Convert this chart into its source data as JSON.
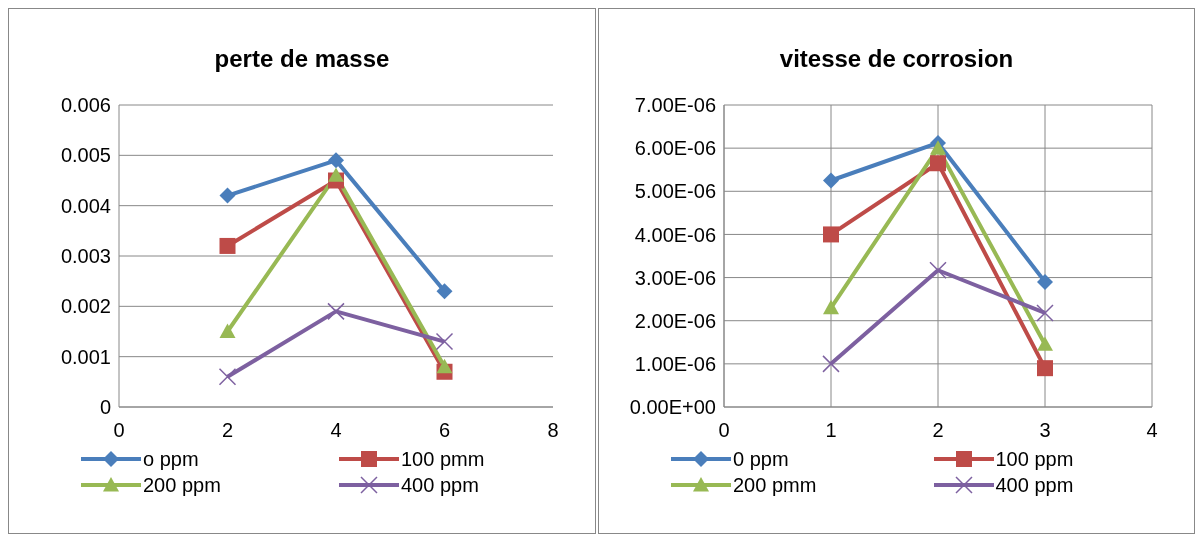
{
  "chart_data": [
    {
      "type": "line",
      "title": "perte de masse",
      "legend": "bottom",
      "grid": "y",
      "xlim": [
        0,
        8
      ],
      "xticks": [
        0,
        2,
        4,
        6,
        8
      ],
      "ylim": [
        0,
        0.006
      ],
      "yticks": [
        0,
        0.001,
        0.002,
        0.003,
        0.004,
        0.005,
        0.006
      ],
      "x": [
        2,
        4,
        6
      ],
      "series": [
        {
          "name": "o ppm",
          "color": "#4a7ebb",
          "marker": "diamond",
          "values": [
            0.0042,
            0.0049,
            0.0023
          ]
        },
        {
          "name": "100 pmm",
          "color": "#be4b48",
          "marker": "square",
          "values": [
            0.0032,
            0.0045,
            0.0007
          ]
        },
        {
          "name": "200 ppm",
          "color": "#98b954",
          "marker": "triangle",
          "values": [
            0.0015,
            0.0046,
            0.0008
          ]
        },
        {
          "name": "400 ppm",
          "color": "#7d60a0",
          "marker": "cross",
          "values": [
            0.0006,
            0.0019,
            0.0013
          ]
        }
      ]
    },
    {
      "type": "line",
      "title": "vitesse de corrosion",
      "legend": "bottom",
      "grid": true,
      "xlim": [
        0,
        4
      ],
      "xticks": [
        0,
        1,
        2,
        3,
        4
      ],
      "ylim": [
        0,
        7e-06
      ],
      "yticks": [
        {
          "value": 0,
          "label": "0.00E+00"
        },
        {
          "value": 1e-06,
          "label": "1.00E-06"
        },
        {
          "value": 2e-06,
          "label": "2.00E-06"
        },
        {
          "value": 3e-06,
          "label": "3.00E-06"
        },
        {
          "value": 4e-06,
          "label": "4.00E-06"
        },
        {
          "value": 5e-06,
          "label": "5.00E-06"
        },
        {
          "value": 6e-06,
          "label": "6.00E-06"
        },
        {
          "value": 7e-06,
          "label": "7.00E-06"
        }
      ],
      "x": [
        1,
        2,
        3
      ],
      "series": [
        {
          "name": "0 ppm",
          "color": "#4a7ebb",
          "marker": "diamond",
          "values": [
            5.25e-06,
            6.12e-06,
            2.9e-06
          ]
        },
        {
          "name": "100 ppm",
          "color": "#be4b48",
          "marker": "square",
          "values": [
            4e-06,
            5.65e-06,
            9e-07
          ]
        },
        {
          "name": "200 pmm",
          "color": "#98b954",
          "marker": "triangle",
          "values": [
            2.3e-06,
            6e-06,
            1.45e-06
          ]
        },
        {
          "name": "400 ppm",
          "color": "#7d60a0",
          "marker": "cross",
          "values": [
            1e-06,
            3.17e-06,
            2.18e-06
          ]
        }
      ]
    }
  ]
}
